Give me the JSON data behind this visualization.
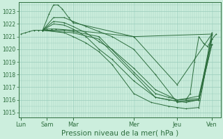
{
  "bg_color": "#cceedd",
  "grid_color": "#99ccbb",
  "line_color": "#2d6e3e",
  "xlabel": "Pression niveau de la mer( hPa )",
  "xlabel_fontsize": 7.5,
  "tick_labels": [
    "Lun",
    "Sam",
    "Mar",
    "Mer",
    "Jeu",
    "Ven"
  ],
  "tick_positions": [
    0,
    12,
    24,
    52,
    72,
    88
  ],
  "ylim": [
    1014.6,
    1023.7
  ],
  "yticks": [
    1015,
    1016,
    1017,
    1018,
    1019,
    1020,
    1021,
    1022,
    1023
  ],
  "xlim": [
    -1,
    92
  ],
  "lines": [
    {
      "x": [
        0,
        2,
        4,
        6,
        8,
        10,
        12,
        14,
        16,
        24,
        52,
        72,
        88
      ],
      "y": [
        1021.2,
        1021.3,
        1021.4,
        1021.5,
        1021.5,
        1021.5,
        1021.6,
        1021.6,
        1021.6,
        1021.5,
        1021.0,
        1017.2,
        1021.2
      ]
    },
    {
      "x": [
        10,
        13,
        15,
        17,
        19,
        22,
        24,
        52,
        88
      ],
      "y": [
        1021.5,
        1022.8,
        1023.5,
        1023.5,
        1023.2,
        1022.5,
        1022.1,
        1021.0,
        1021.2
      ]
    },
    {
      "x": [
        10,
        15,
        20,
        24,
        30,
        36,
        42,
        52,
        62,
        72,
        82,
        88
      ],
      "y": [
        1021.5,
        1022.5,
        1022.5,
        1022.2,
        1021.8,
        1021.4,
        1021.0,
        1020.0,
        1018.0,
        1015.8,
        1016.0,
        1021.3
      ]
    },
    {
      "x": [
        10,
        15,
        20,
        24,
        30,
        36,
        42,
        52,
        62,
        72,
        82,
        88
      ],
      "y": [
        1021.5,
        1022.2,
        1022.1,
        1021.8,
        1021.3,
        1020.6,
        1020.0,
        1018.5,
        1016.8,
        1016.0,
        1016.1,
        1020.8
      ]
    },
    {
      "x": [
        10,
        15,
        20,
        24,
        30,
        36,
        42,
        52,
        62,
        72,
        82,
        88
      ],
      "y": [
        1021.5,
        1022.0,
        1021.9,
        1021.6,
        1021.0,
        1020.0,
        1019.2,
        1017.5,
        1016.2,
        1015.9,
        1016.0,
        1020.4
      ]
    },
    {
      "x": [
        10,
        20,
        24,
        36,
        52,
        62,
        68,
        72,
        76,
        82,
        88
      ],
      "y": [
        1021.5,
        1021.5,
        1021.4,
        1021.0,
        1018.2,
        1016.5,
        1016.2,
        1016.0,
        1016.1,
        1016.3,
        1020.8
      ]
    },
    {
      "x": [
        10,
        24,
        36,
        52,
        62,
        68,
        72,
        76,
        82,
        88
      ],
      "y": [
        1021.5,
        1021.3,
        1020.8,
        1018.0,
        1016.2,
        1016.0,
        1015.9,
        1015.8,
        1016.0,
        1020.4
      ]
    },
    {
      "x": [
        10,
        20,
        24,
        30,
        36,
        42,
        52,
        60,
        68,
        72,
        76,
        82,
        88
      ],
      "y": [
        1021.5,
        1021.3,
        1021.0,
        1020.5,
        1019.8,
        1018.8,
        1016.5,
        1015.8,
        1015.5,
        1015.4,
        1015.3,
        1015.4,
        1021.1
      ]
    },
    {
      "x": [
        76,
        78,
        80,
        82,
        84,
        86,
        88,
        90
      ],
      "y": [
        1016.0,
        1016.5,
        1019.0,
        1021.0,
        1020.5,
        1020.2,
        1020.8,
        1021.2
      ]
    }
  ]
}
